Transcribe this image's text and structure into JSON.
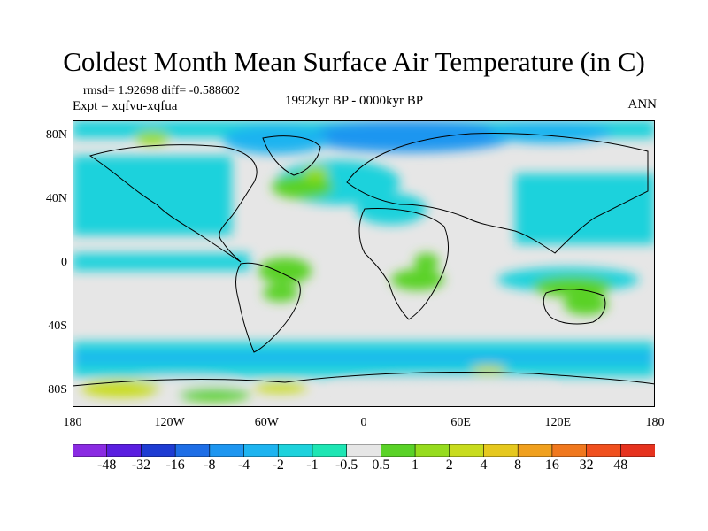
{
  "header": {
    "title": "Coldest Month Mean Surface Air Temperature (in C)",
    "stats": "rmsd= 1.92698  diff= -0.588602",
    "experiment": "Expt = xqfvu-xqfua",
    "period": "1992kyr BP - 0000kyr BP",
    "season": "ANN"
  },
  "axes": {
    "lat_labels": [
      "80N",
      "40N",
      "0",
      "40S",
      "80S"
    ],
    "lat_values": [
      80,
      40,
      0,
      -40,
      -80
    ],
    "lon_labels": [
      "180",
      "120W",
      "60W",
      "0",
      "60E",
      "120E",
      "180"
    ],
    "lon_values": [
      -180,
      -120,
      -60,
      0,
      60,
      120,
      180
    ]
  },
  "colorbar": {
    "labels": [
      "-48",
      "-32",
      "-16",
      "-8",
      "-4",
      "-2",
      "-1",
      "-0.5",
      "0.5",
      "1",
      "2",
      "4",
      "8",
      "16",
      "32",
      "48"
    ],
    "colors": [
      "#8a2be2",
      "#5a1ee0",
      "#1e3cd2",
      "#1e6ee6",
      "#1e96f0",
      "#1eb4f0",
      "#1ed2dc",
      "#1ee6b4",
      "#e6e6e6",
      "#5ad228",
      "#96dc1e",
      "#c8dc1e",
      "#e6c81e",
      "#f0a01e",
      "#f0781e",
      "#f0501e",
      "#e6321e"
    ]
  },
  "colors": {
    "neutral": "#e6e6e6",
    "coastline": "#000000"
  }
}
